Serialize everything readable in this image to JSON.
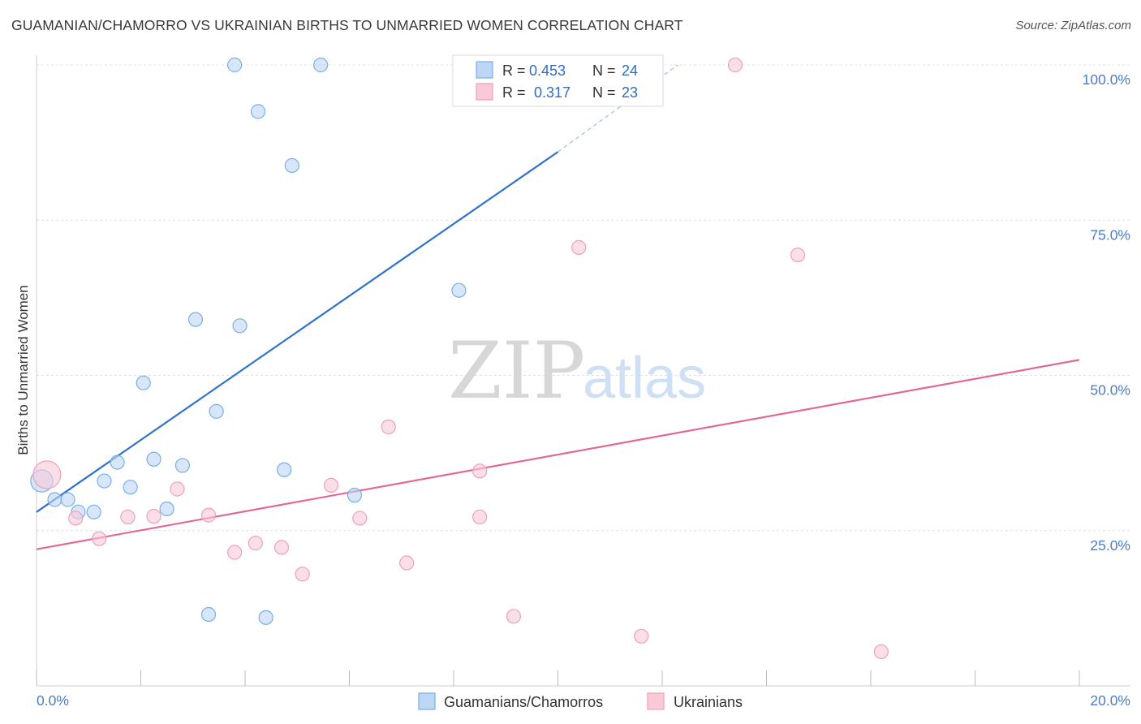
{
  "title": "GUAMANIAN/CHAMORRO VS UKRAINIAN BIRTHS TO UNMARRIED WOMEN CORRELATION CHART",
  "source": "Source: ZipAtlas.com",
  "watermark": {
    "zip": "ZIP",
    "atlas": "atlas"
  },
  "chart_data": {
    "type": "scatter",
    "title": "GUAMANIAN/CHAMORRO VS UKRAINIAN BIRTHS TO UNMARRIED WOMEN CORRELATION CHART",
    "xlabel": "",
    "ylabel": "Births to Unmarried Women",
    "xlim": [
      0,
      20
    ],
    "ylim": [
      0,
      100
    ],
    "x_tick_labels": [
      "0.0%",
      "20.0%"
    ],
    "y_ticks": [
      25,
      50,
      75,
      100
    ],
    "y_tick_labels": [
      "25.0%",
      "50.0%",
      "75.0%",
      "100.0%"
    ],
    "grid": true,
    "legend_position": "top-center",
    "series": [
      {
        "name": "Guamanians/Chamorros",
        "color": "#7aaee8",
        "fill": "#bcd6f5",
        "stats": {
          "R_label": "R =",
          "R": "0.453",
          "N_label": "N =",
          "N": "24"
        },
        "trend": {
          "x0": 0,
          "y0": 28.0,
          "x1": 10.0,
          "y1": 86.0,
          "dash_to_x": 12.3,
          "dash_to_y": 100.0
        },
        "points": [
          {
            "x": 0.1,
            "y": 33.0,
            "size": 1.6
          },
          {
            "x": 0.35,
            "y": 30.0
          },
          {
            "x": 0.6,
            "y": 30.0
          },
          {
            "x": 0.8,
            "y": 28.0
          },
          {
            "x": 1.1,
            "y": 28.0
          },
          {
            "x": 1.3,
            "y": 33.0
          },
          {
            "x": 1.55,
            "y": 36.0
          },
          {
            "x": 1.8,
            "y": 32.0
          },
          {
            "x": 2.05,
            "y": 48.8
          },
          {
            "x": 2.25,
            "y": 36.5
          },
          {
            "x": 2.5,
            "y": 28.5
          },
          {
            "x": 2.8,
            "y": 35.5
          },
          {
            "x": 3.05,
            "y": 59.0
          },
          {
            "x": 3.3,
            "y": 11.5
          },
          {
            "x": 3.45,
            "y": 44.2
          },
          {
            "x": 3.8,
            "y": 100.0
          },
          {
            "x": 3.9,
            "y": 58.0
          },
          {
            "x": 4.25,
            "y": 92.5
          },
          {
            "x": 4.4,
            "y": 11.0
          },
          {
            "x": 4.75,
            "y": 34.8
          },
          {
            "x": 4.9,
            "y": 83.8
          },
          {
            "x": 5.45,
            "y": 100.0
          },
          {
            "x": 6.1,
            "y": 30.7
          },
          {
            "x": 8.1,
            "y": 63.7
          }
        ]
      },
      {
        "name": "Ukrainians",
        "color": "#f0a0b8",
        "fill": "#f8cad8",
        "stats": {
          "R_label": "R =",
          "R": "0.317",
          "N_label": "N =",
          "N": "23"
        },
        "trend": {
          "x0": 0,
          "y0": 22.0,
          "x1": 20.0,
          "y1": 52.5
        },
        "points": [
          {
            "x": 0.2,
            "y": 34.0,
            "size": 2.0
          },
          {
            "x": 0.75,
            "y": 27.0
          },
          {
            "x": 1.2,
            "y": 23.7
          },
          {
            "x": 1.75,
            "y": 27.2
          },
          {
            "x": 2.25,
            "y": 27.3
          },
          {
            "x": 2.7,
            "y": 31.7
          },
          {
            "x": 3.3,
            "y": 27.5
          },
          {
            "x": 3.8,
            "y": 21.5
          },
          {
            "x": 4.2,
            "y": 23.0
          },
          {
            "x": 4.7,
            "y": 22.3
          },
          {
            "x": 5.1,
            "y": 18.0
          },
          {
            "x": 5.65,
            "y": 32.3
          },
          {
            "x": 6.2,
            "y": 27.0
          },
          {
            "x": 6.75,
            "y": 41.7
          },
          {
            "x": 7.1,
            "y": 19.8
          },
          {
            "x": 8.5,
            "y": 34.6
          },
          {
            "x": 8.5,
            "y": 27.2
          },
          {
            "x": 9.15,
            "y": 11.2
          },
          {
            "x": 10.4,
            "y": 70.6
          },
          {
            "x": 11.6,
            "y": 8.0
          },
          {
            "x": 13.4,
            "y": 100.0
          },
          {
            "x": 14.6,
            "y": 69.4
          },
          {
            "x": 16.2,
            "y": 5.5
          }
        ]
      }
    ]
  }
}
